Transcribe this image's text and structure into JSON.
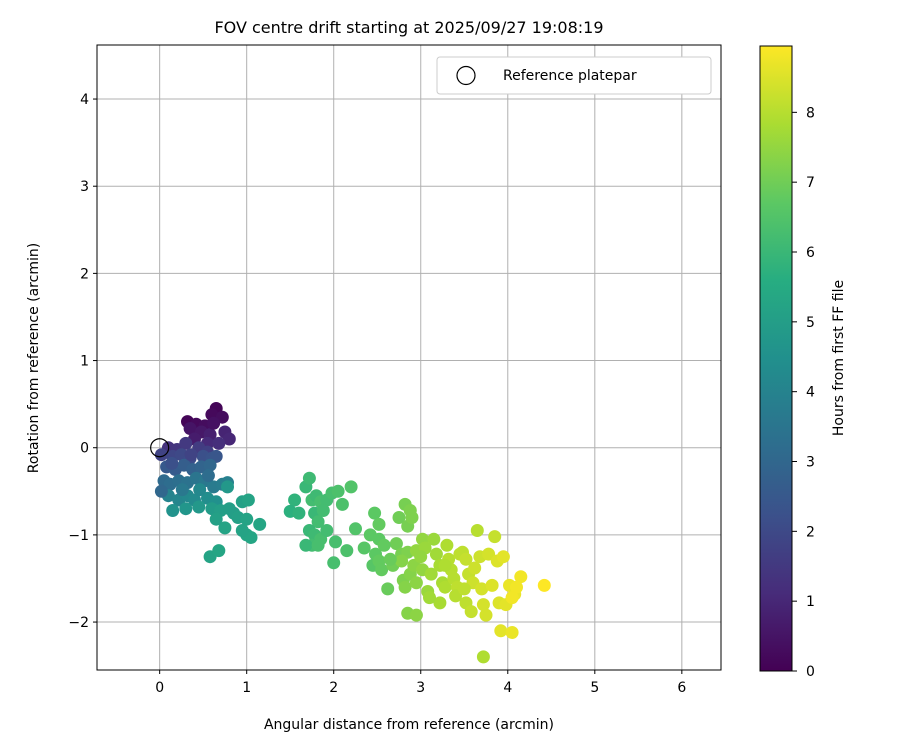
{
  "chart_data": {
    "type": "scatter",
    "title": "FOV centre drift starting at 2025/09/27 19:08:19",
    "xlabel": "Angular distance from reference (arcmin)",
    "ylabel": "Rotation from reference (arcmin)",
    "xlim": [
      -0.72,
      6.45
    ],
    "ylim": [
      -2.55,
      4.62
    ],
    "xticks": [
      0,
      1,
      2,
      3,
      4,
      5,
      6
    ],
    "yticks": [
      -2,
      -1,
      0,
      1,
      2,
      3,
      4
    ],
    "grid": true,
    "legend": {
      "position": "top-right",
      "entries": [
        "Reference platepar"
      ]
    },
    "reference_point": {
      "x": 0,
      "y": 0
    },
    "colorbar": {
      "label": "Hours from first FF file",
      "colormap": "viridis",
      "range": [
        0,
        8.95
      ],
      "ticks": [
        0,
        1,
        2,
        3,
        4,
        5,
        6,
        7,
        8
      ]
    },
    "points": [
      [
        0.32,
        0.3,
        0.1
      ],
      [
        0.42,
        0.27,
        0.2
      ],
      [
        0.52,
        0.25,
        0.3
      ],
      [
        0.65,
        0.45,
        0.1
      ],
      [
        0.6,
        0.38,
        0.2
      ],
      [
        0.72,
        0.35,
        0.3
      ],
      [
        0.35,
        0.22,
        0.5
      ],
      [
        0.48,
        0.18,
        0.6
      ],
      [
        0.58,
        0.15,
        0.8
      ],
      [
        0.62,
        0.28,
        0.4
      ],
      [
        0.75,
        0.18,
        0.9
      ],
      [
        0.8,
        0.1,
        1.0
      ],
      [
        0.55,
        0.05,
        1.1
      ],
      [
        0.68,
        0.05,
        1.2
      ],
      [
        0.4,
        0.1,
        0.7
      ],
      [
        0.1,
        0.0,
        1.3
      ],
      [
        0.2,
        -0.02,
        1.4
      ],
      [
        0.3,
        0.05,
        1.5
      ],
      [
        0.45,
        0.0,
        1.6
      ],
      [
        0.55,
        -0.05,
        1.7
      ],
      [
        0.02,
        -0.08,
        1.8
      ],
      [
        0.15,
        -0.1,
        1.9
      ],
      [
        0.25,
        -0.08,
        2.0
      ],
      [
        0.35,
        -0.12,
        2.1
      ],
      [
        0.5,
        -0.1,
        2.2
      ],
      [
        0.6,
        -0.12,
        2.3
      ],
      [
        0.65,
        -0.1,
        2.4
      ],
      [
        0.08,
        -0.22,
        2.5
      ],
      [
        0.18,
        -0.25,
        2.6
      ],
      [
        0.28,
        -0.2,
        2.7
      ],
      [
        0.38,
        -0.25,
        2.8
      ],
      [
        0.48,
        -0.22,
        2.9
      ],
      [
        0.58,
        -0.2,
        3.0
      ],
      [
        0.05,
        -0.38,
        3.1
      ],
      [
        0.12,
        -0.42,
        3.2
      ],
      [
        0.22,
        -0.38,
        3.3
      ],
      [
        0.32,
        -0.4,
        3.4
      ],
      [
        0.42,
        -0.35,
        3.5
      ],
      [
        0.52,
        -0.38,
        3.6
      ],
      [
        0.62,
        -0.45,
        3.7
      ],
      [
        0.72,
        -0.42,
        3.8
      ],
      [
        0.78,
        -0.4,
        3.9
      ],
      [
        0.1,
        -0.55,
        4.0
      ],
      [
        0.22,
        -0.6,
        4.1
      ],
      [
        0.32,
        -0.55,
        4.2
      ],
      [
        0.4,
        -0.6,
        4.3
      ],
      [
        0.55,
        -0.58,
        4.4
      ],
      [
        0.65,
        -0.62,
        4.5
      ],
      [
        0.15,
        -0.72,
        4.6
      ],
      [
        0.3,
        -0.7,
        4.7
      ],
      [
        0.45,
        -0.68,
        4.8
      ],
      [
        0.6,
        -0.7,
        4.9
      ],
      [
        0.7,
        -0.72,
        5.0
      ],
      [
        0.02,
        -0.5,
        3.0
      ],
      [
        0.14,
        -0.18,
        2.2
      ],
      [
        0.26,
        -0.48,
        3.6
      ],
      [
        0.36,
        -0.08,
        1.8
      ],
      [
        0.46,
        -0.48,
        4.2
      ],
      [
        0.56,
        -0.32,
        3.2
      ],
      [
        0.85,
        -0.75,
        5.0
      ],
      [
        0.95,
        -0.62,
        5.1
      ],
      [
        1.02,
        -0.6,
        5.2
      ],
      [
        0.8,
        -0.7,
        5.0
      ],
      [
        0.9,
        -0.8,
        5.1
      ],
      [
        1.0,
        -0.82,
        5.2
      ],
      [
        1.15,
        -0.88,
        5.3
      ],
      [
        1.0,
        -1.0,
        5.3
      ],
      [
        0.75,
        -0.92,
        5.2
      ],
      [
        0.65,
        -0.82,
        5.1
      ],
      [
        1.05,
        -1.03,
        5.3
      ],
      [
        0.58,
        -1.25,
        5.2
      ],
      [
        0.68,
        -1.18,
        5.3
      ],
      [
        0.78,
        -0.45,
        4.8
      ],
      [
        0.95,
        -0.95,
        5.2
      ],
      [
        1.55,
        -0.6,
        5.8
      ],
      [
        1.5,
        -0.73,
        5.7
      ],
      [
        1.6,
        -0.75,
        5.8
      ],
      [
        1.68,
        -0.45,
        6.0
      ],
      [
        1.72,
        -0.35,
        6.1
      ],
      [
        1.75,
        -0.6,
        6.2
      ],
      [
        1.8,
        -0.55,
        6.1
      ],
      [
        1.85,
        -0.62,
        6.3
      ],
      [
        1.92,
        -0.6,
        6.2
      ],
      [
        1.98,
        -0.52,
        6.3
      ],
      [
        2.05,
        -0.5,
        6.4
      ],
      [
        2.2,
        -0.45,
        6.5
      ],
      [
        1.78,
        -0.75,
        6.0
      ],
      [
        1.82,
        -0.85,
        6.2
      ],
      [
        1.72,
        -0.95,
        6.0
      ],
      [
        1.78,
        -1.0,
        6.1
      ],
      [
        1.85,
        -1.05,
        6.3
      ],
      [
        1.92,
        -0.95,
        6.2
      ],
      [
        2.02,
        -1.08,
        6.3
      ],
      [
        2.1,
        -0.65,
        6.4
      ],
      [
        2.15,
        -1.18,
        6.4
      ],
      [
        1.75,
        -1.12,
        6.2
      ],
      [
        1.68,
        -1.12,
        6.0
      ],
      [
        1.82,
        -1.12,
        6.3
      ],
      [
        2.0,
        -1.32,
        6.3
      ],
      [
        1.88,
        -0.72,
        6.2
      ],
      [
        2.25,
        -0.93,
        6.5
      ],
      [
        2.35,
        -1.15,
        6.6
      ],
      [
        2.42,
        -1.0,
        6.7
      ],
      [
        2.47,
        -0.75,
        6.7
      ],
      [
        2.52,
        -0.88,
        6.8
      ],
      [
        2.52,
        -1.05,
        6.7
      ],
      [
        2.48,
        -1.22,
        6.7
      ],
      [
        2.45,
        -1.35,
        6.6
      ],
      [
        2.52,
        -1.3,
        6.8
      ],
      [
        2.55,
        -1.4,
        6.8
      ],
      [
        2.62,
        -1.62,
        6.9
      ],
      [
        2.68,
        -1.35,
        7.0
      ],
      [
        2.72,
        -1.1,
        7.0
      ],
      [
        2.78,
        -1.22,
        7.1
      ],
      [
        2.75,
        -0.8,
        7.0
      ],
      [
        2.82,
        -0.65,
        7.1
      ],
      [
        2.85,
        -0.9,
        7.1
      ],
      [
        2.88,
        -0.72,
        7.2
      ],
      [
        2.9,
        -0.8,
        7.2
      ],
      [
        2.85,
        -1.2,
        7.2
      ],
      [
        2.78,
        -1.3,
        7.3
      ],
      [
        2.8,
        -1.52,
        7.2
      ],
      [
        2.82,
        -1.6,
        7.3
      ],
      [
        2.88,
        -1.45,
        7.3
      ],
      [
        2.92,
        -1.35,
        7.4
      ],
      [
        2.95,
        -1.55,
        7.4
      ],
      [
        2.85,
        -1.9,
        7.3
      ],
      [
        2.95,
        -1.92,
        7.4
      ],
      [
        2.95,
        -1.18,
        7.5
      ],
      [
        3.02,
        -1.05,
        7.5
      ],
      [
        3.05,
        -1.15,
        7.6
      ],
      [
        3.02,
        -1.4,
        7.5
      ],
      [
        3.08,
        -1.65,
        7.6
      ],
      [
        3.12,
        -1.45,
        7.7
      ],
      [
        3.15,
        -1.05,
        7.6
      ],
      [
        3.18,
        -1.22,
        7.7
      ],
      [
        3.22,
        -1.35,
        7.8
      ],
      [
        3.22,
        -1.78,
        7.8
      ],
      [
        3.25,
        -1.55,
        7.8
      ],
      [
        3.28,
        -1.6,
        7.9
      ],
      [
        3.3,
        -1.12,
        7.9
      ],
      [
        3.32,
        -1.28,
        8.0
      ],
      [
        3.35,
        -1.4,
        8.0
      ],
      [
        3.38,
        -1.5,
        8.0
      ],
      [
        3.42,
        -1.6,
        8.1
      ],
      [
        3.45,
        -1.22,
        8.1
      ],
      [
        3.48,
        -1.2,
        8.1
      ],
      [
        3.52,
        -1.28,
        8.2
      ],
      [
        3.55,
        -1.45,
        8.2
      ],
      [
        3.52,
        -1.78,
        8.1
      ],
      [
        3.58,
        -1.88,
        8.2
      ],
      [
        3.6,
        -1.55,
        8.3
      ],
      [
        3.62,
        -1.38,
        8.3
      ],
      [
        3.65,
        -0.95,
        8.0
      ],
      [
        3.68,
        -1.25,
        8.3
      ],
      [
        3.7,
        -1.62,
        8.4
      ],
      [
        3.72,
        -1.8,
        8.4
      ],
      [
        3.75,
        -1.92,
        8.4
      ],
      [
        3.78,
        -1.22,
        8.4
      ],
      [
        3.82,
        -1.58,
        8.5
      ],
      [
        3.85,
        -1.02,
        8.2
      ],
      [
        3.88,
        -1.3,
        8.5
      ],
      [
        3.9,
        -1.78,
        8.5
      ],
      [
        3.92,
        -2.1,
        8.6
      ],
      [
        3.95,
        -1.25,
        8.6
      ],
      [
        3.98,
        -1.8,
        8.6
      ],
      [
        4.02,
        -1.58,
        8.7
      ],
      [
        4.05,
        -2.12,
        8.7
      ],
      [
        4.08,
        -1.68,
        8.7
      ],
      [
        4.1,
        -1.6,
        8.8
      ],
      [
        4.15,
        -1.48,
        8.8
      ],
      [
        4.05,
        -1.72,
        8.8
      ],
      [
        4.42,
        -1.58,
        8.95
      ],
      [
        3.72,
        -2.4,
        7.9
      ],
      [
        3.1,
        -1.72,
        7.7
      ],
      [
        3.4,
        -1.7,
        8.0
      ],
      [
        3.5,
        -1.62,
        8.1
      ],
      [
        3.28,
        -1.35,
        7.9
      ],
      [
        2.65,
        -1.28,
        6.9
      ],
      [
        2.58,
        -1.12,
        6.8
      ],
      [
        3.0,
        -1.25,
        7.5
      ]
    ]
  }
}
